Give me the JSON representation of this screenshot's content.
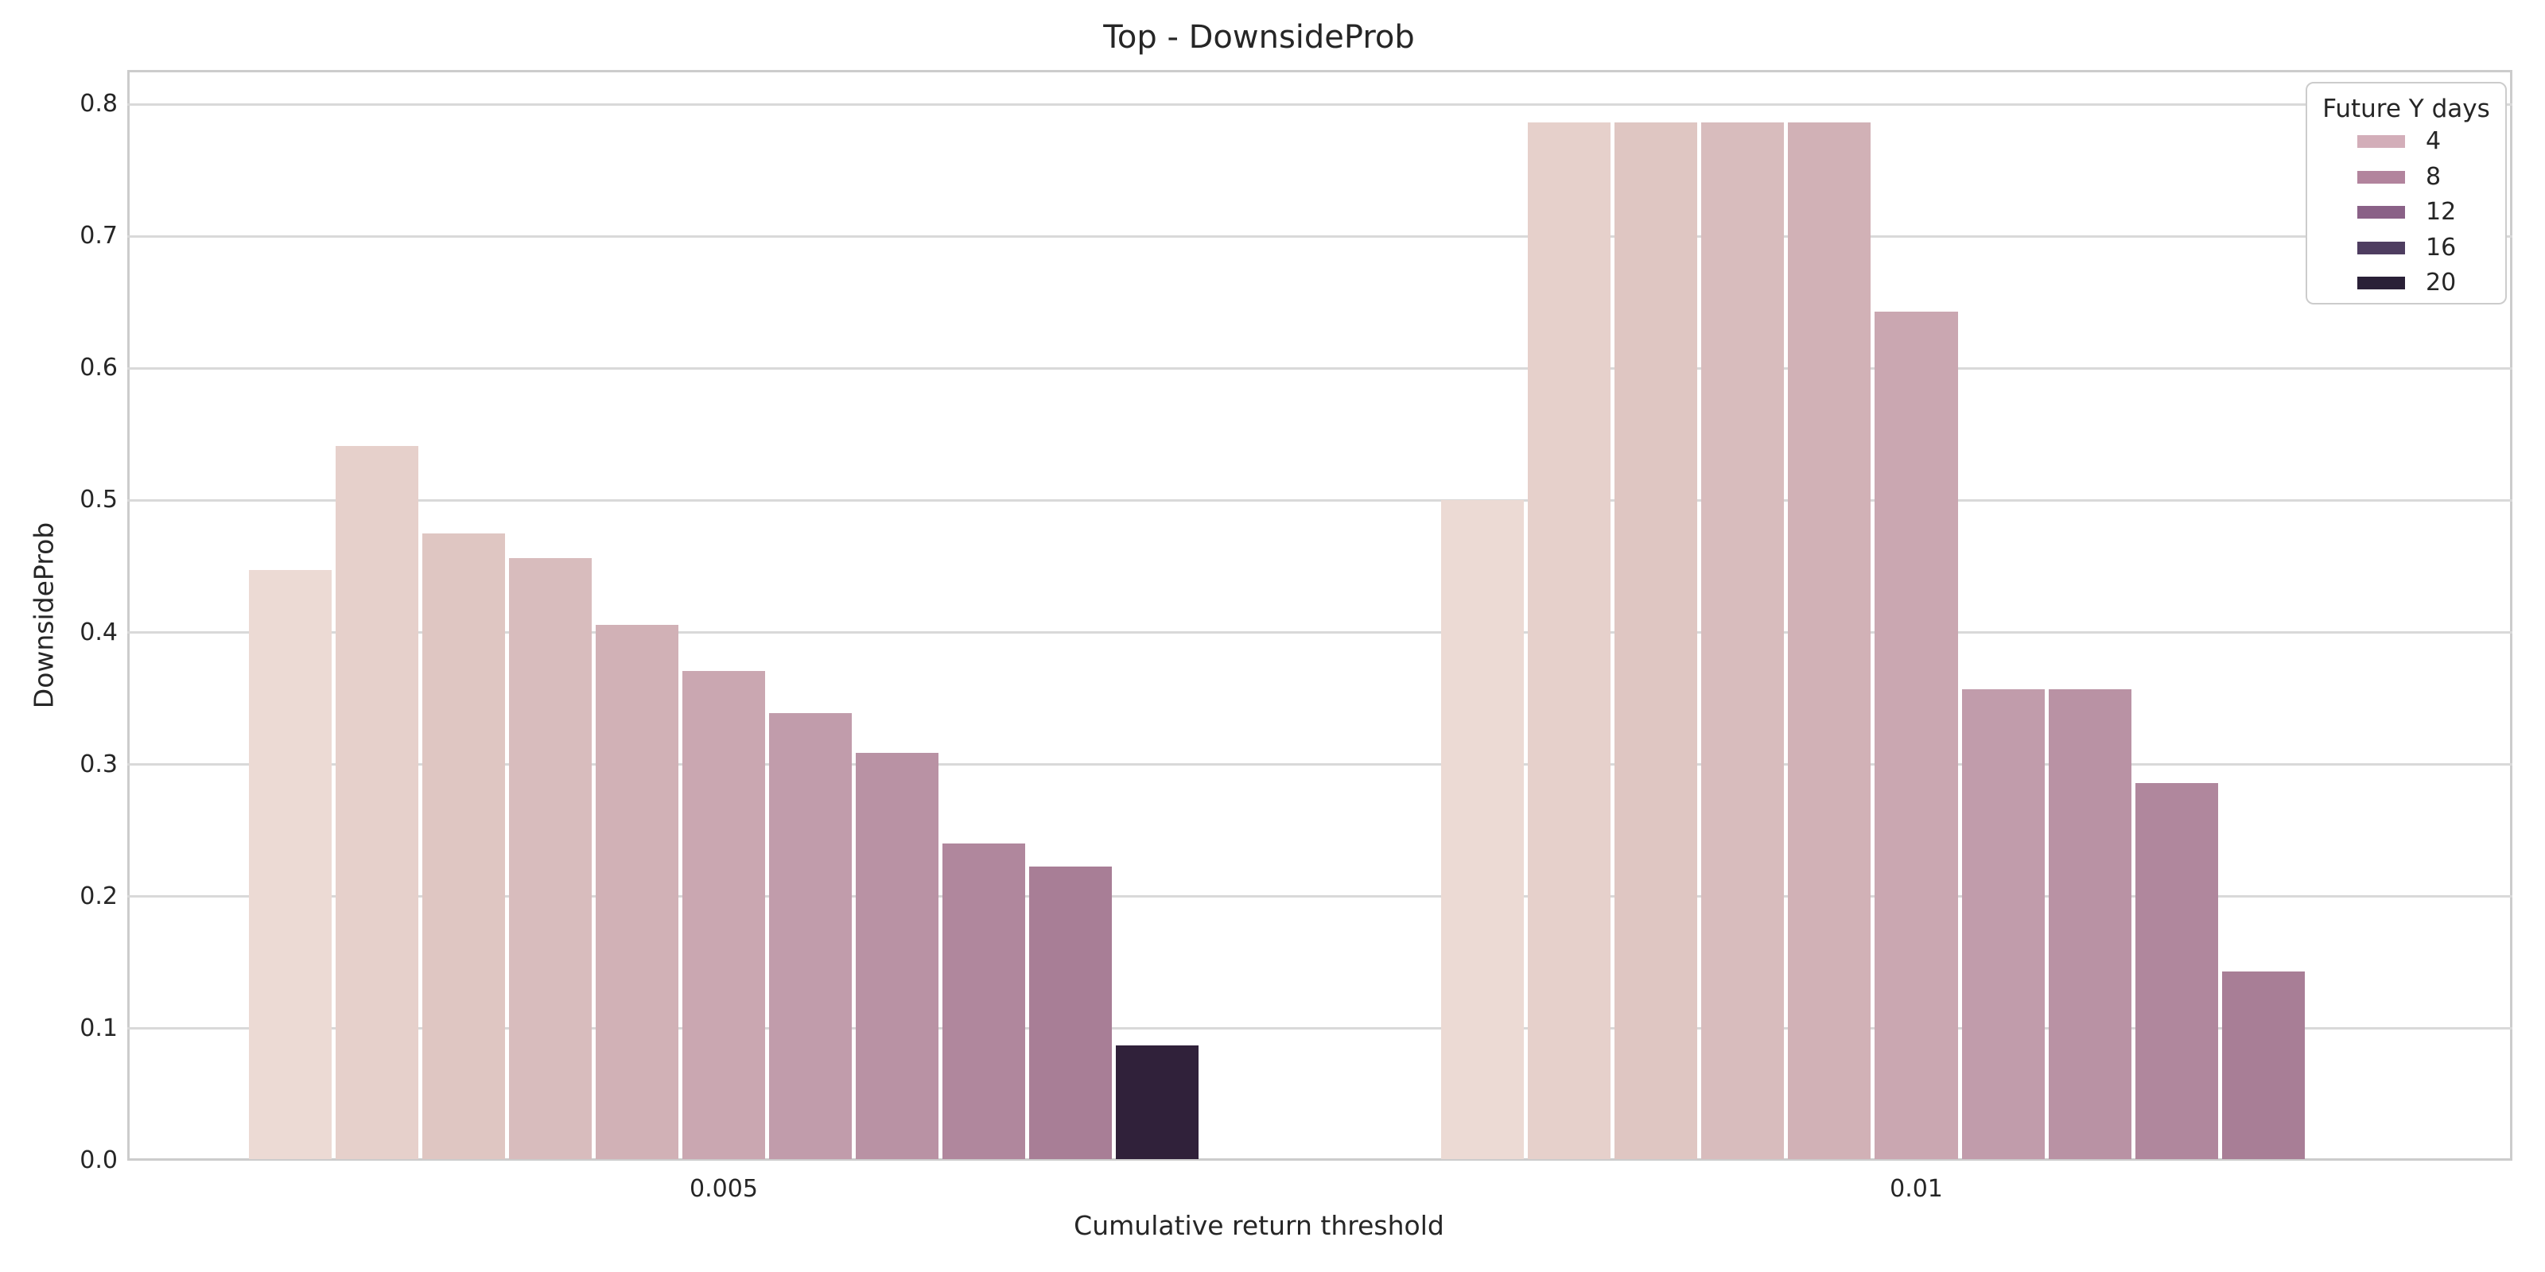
{
  "title": "Top - DownsideProb",
  "chart_data": {
    "type": "bar",
    "title": "Top - DownsideProb",
    "xlabel": "Cumulative return threshold",
    "ylabel": "DownsideProb",
    "ylim": [
      0.0,
      0.826
    ],
    "yticks": [
      0.0,
      0.1,
      0.2,
      0.3,
      0.4,
      0.5,
      0.6,
      0.7,
      0.8
    ],
    "ytick_labels": [
      "0.0",
      "0.1",
      "0.2",
      "0.3",
      "0.4",
      "0.5",
      "0.6",
      "0.7",
      "0.8"
    ],
    "categories": [
      "0.005",
      "0.01"
    ],
    "grid": true,
    "grid_color": "#d9d9d9",
    "spine_color": "#cccccc",
    "legend_position": "upper right",
    "legend_title": "Future Y days",
    "legend": [
      {
        "label": "4",
        "color": "#d3aeb9"
      },
      {
        "label": "8",
        "color": "#b2849d"
      },
      {
        "label": "12",
        "color": "#8a6187"
      },
      {
        "label": "16",
        "color": "#4e3d60"
      },
      {
        "label": "20",
        "color": "#2a2037"
      }
    ],
    "slots_per_group": 11,
    "groups": [
      {
        "category": "0.005",
        "bars": [
          {
            "value": 0.447,
            "color": "#ecdad4"
          },
          {
            "value": 0.541,
            "color": "#e6d0cb"
          },
          {
            "value": 0.475,
            "color": "#dfc6c2"
          },
          {
            "value": 0.456,
            "color": "#d8bcbd"
          },
          {
            "value": 0.406,
            "color": "#d1b1b6"
          },
          {
            "value": 0.371,
            "color": "#caa7b1"
          },
          {
            "value": 0.339,
            "color": "#c19cab"
          },
          {
            "value": 0.309,
            "color": "#b992a4"
          },
          {
            "value": 0.24,
            "color": "#b0879d"
          },
          {
            "value": 0.223,
            "color": "#a87e96"
          },
          {
            "value": 0.087,
            "color": "#30213a"
          }
        ]
      },
      {
        "category": "0.01",
        "bars": [
          {
            "value": 0.5,
            "color": "#ecdad4"
          },
          {
            "value": 0.786,
            "color": "#e6d0cb"
          },
          {
            "value": 0.786,
            "color": "#dfc6c2"
          },
          {
            "value": 0.786,
            "color": "#d8bcbd"
          },
          {
            "value": 0.786,
            "color": "#d1b1b6"
          },
          {
            "value": 0.643,
            "color": "#caa7b1"
          },
          {
            "value": 0.357,
            "color": "#c19cab"
          },
          {
            "value": 0.357,
            "color": "#b992a4"
          },
          {
            "value": 0.286,
            "color": "#b0879d"
          },
          {
            "value": 0.143,
            "color": "#a87e96"
          }
        ]
      }
    ]
  }
}
